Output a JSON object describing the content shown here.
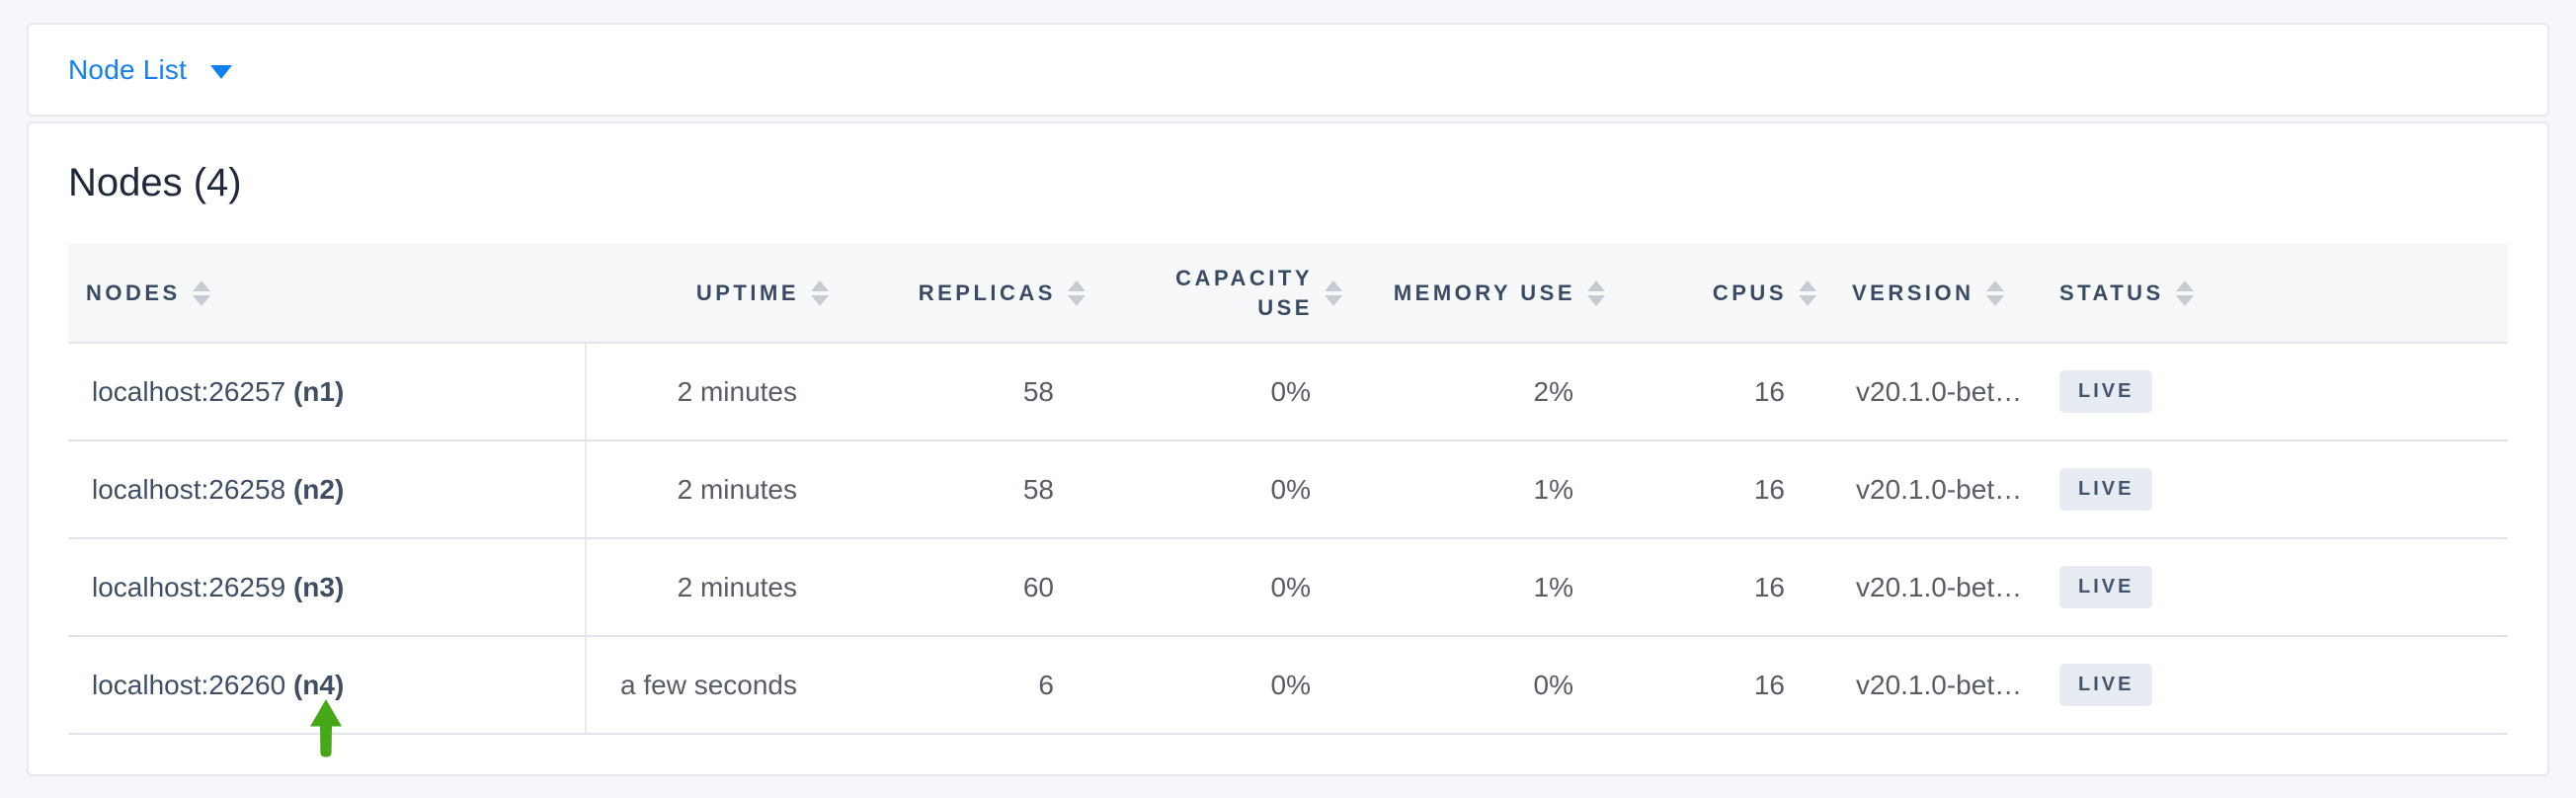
{
  "colors": {
    "accent_blue": "#1180F2",
    "arrow_green": "#46A819",
    "badge_bg": "#E7EBF2",
    "badge_text": "#44546A",
    "header_text": "#3B4A63",
    "page_bg": "#F4F6FA"
  },
  "toolbar": {
    "view_selector_label": "Node List"
  },
  "main": {
    "title": "Nodes (4)"
  },
  "table": {
    "columns": [
      {
        "key": "node",
        "label": "NODES",
        "align": "left"
      },
      {
        "key": "uptime",
        "label": "UPTIME",
        "align": "right"
      },
      {
        "key": "replicas",
        "label": "REPLICAS",
        "align": "right"
      },
      {
        "key": "capacity",
        "label": "CAPACITY USE",
        "align": "right"
      },
      {
        "key": "memory",
        "label": "MEMORY USE",
        "align": "right"
      },
      {
        "key": "cpus",
        "label": "CPUS",
        "align": "right"
      },
      {
        "key": "version",
        "label": "VERSION",
        "align": "left"
      },
      {
        "key": "status",
        "label": "STATUS",
        "align": "left"
      }
    ],
    "rows": [
      {
        "address": "localhost:26257",
        "node_id": "(n1)",
        "uptime": "2 minutes",
        "replicas": "58",
        "capacity": "0%",
        "memory": "2%",
        "cpus": "16",
        "version": "v20.1.0-bet…",
        "status": "LIVE"
      },
      {
        "address": "localhost:26258",
        "node_id": "(n2)",
        "uptime": "2 minutes",
        "replicas": "58",
        "capacity": "0%",
        "memory": "1%",
        "cpus": "16",
        "version": "v20.1.0-bet…",
        "status": "LIVE"
      },
      {
        "address": "localhost:26259",
        "node_id": "(n3)",
        "uptime": "2 minutes",
        "replicas": "60",
        "capacity": "0%",
        "memory": "1%",
        "cpus": "16",
        "version": "v20.1.0-bet…",
        "status": "LIVE"
      },
      {
        "address": "localhost:26260",
        "node_id": "(n4)",
        "uptime": "a few seconds",
        "replicas": "6",
        "capacity": "0%",
        "memory": "0%",
        "cpus": "16",
        "version": "v20.1.0-bet…",
        "status": "LIVE"
      }
    ]
  },
  "annotation": {
    "icon": "green-up-arrow",
    "points_at": "(n4)"
  }
}
